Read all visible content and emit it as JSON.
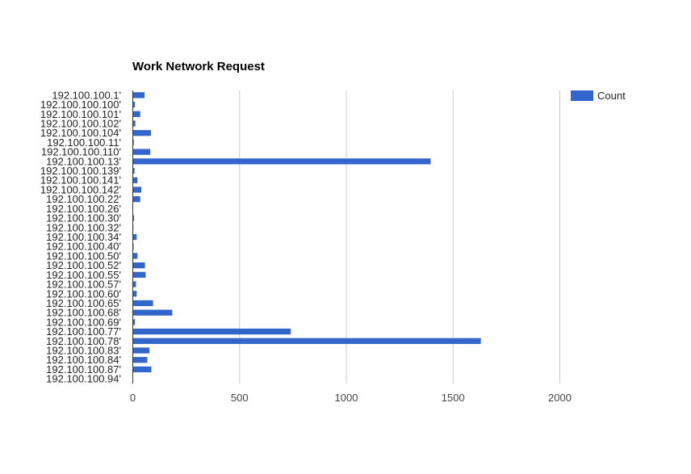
{
  "chart_data": {
    "type": "bar",
    "orientation": "horizontal",
    "title": "Work Network Request",
    "xlim": [
      0,
      2000
    ],
    "xticks": [
      0,
      500,
      1000,
      1500,
      2000
    ],
    "grid": true,
    "legend_position": "top-right",
    "categories": [
      "192.100.100.1'",
      "192.100.100.100'",
      "192.100.100.101'",
      "192.100.100.102'",
      "192.100.100.104'",
      "192.100.100.11'",
      "192.100.100.110'",
      "192.100.100.13'",
      "192.100.100.139'",
      "192.100.100.141'",
      "192.100.100.142'",
      "192.100.100.22'",
      "192.100.100.26'",
      "192.100.100.30'",
      "192.100.100.32'",
      "192.100.100.34'",
      "192.100.100.40'",
      "192.100.100.50'",
      "192.100.100.52'",
      "192.100.100.55'",
      "192.100.100.57'",
      "192.100.100.60'",
      "192.100.100.65'",
      "192.100.100.68'",
      "192.100.100.69'",
      "192.100.100.77'",
      "192.100.100.78'",
      "192.100.100.83'",
      "192.100.100.84'",
      "192.100.100.87'",
      "192.100.100.94'"
    ],
    "series": [
      {
        "name": "Count",
        "color": "#3366cc",
        "values": [
          55,
          10,
          35,
          12,
          85,
          5,
          82,
          1395,
          8,
          22,
          40,
          35,
          2,
          6,
          3,
          18,
          4,
          22,
          57,
          60,
          15,
          18,
          95,
          185,
          10,
          740,
          1630,
          78,
          68,
          87,
          2
        ]
      }
    ]
  }
}
